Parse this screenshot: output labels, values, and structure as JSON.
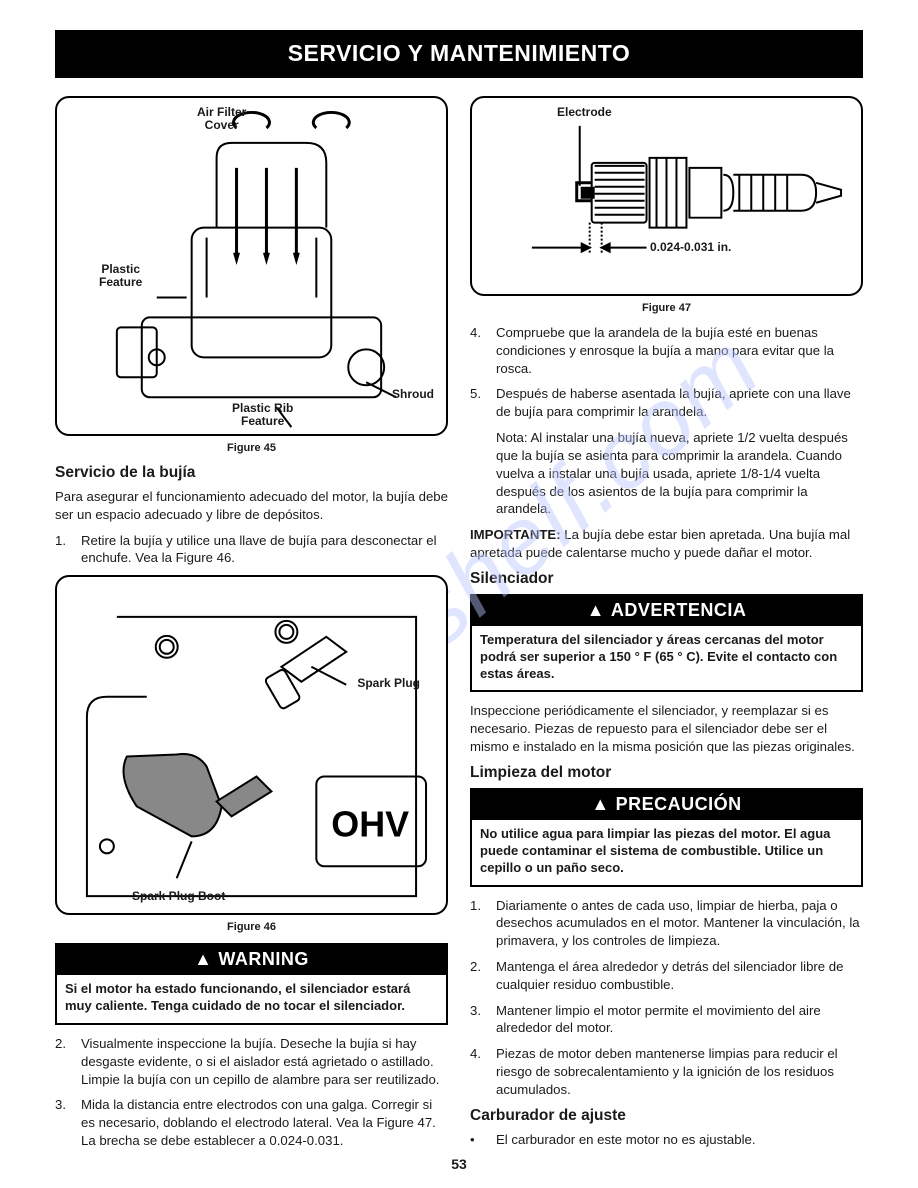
{
  "banner": "SERVICIO Y MANTENIMIENTO",
  "watermark": "manualshelf.com",
  "left": {
    "fig45": {
      "callouts": {
        "air_filter": "Air Filter\nCover",
        "plastic_feature": "Plastic\nFeature",
        "shroud": "Shroud",
        "plastic_rib": "Plastic Rib\nFeature"
      },
      "caption": "Figure 45"
    },
    "section1_h": "Servicio de la bujía",
    "section1_p": "Para asegurar el funcionamiento adecuado del motor, la bujía debe ser un espacio adecuado y libre de depósitos.",
    "list1": [
      "Retire la bujía y utilice una llave de bujía para desconectar el enchufe. Vea la Figure 46."
    ],
    "fig46": {
      "callouts": {
        "spark_plug": "Spark Plug",
        "spark_plug_boot": "Spark Plug Boot",
        "ohv": "OHV"
      },
      "caption": "Figure 46"
    },
    "warning": {
      "head": "WARNING",
      "body": "Si el motor ha estado funcionando, el silenciador estará muy caliente. Tenga cuidado de no tocar el silenciador."
    },
    "list2": [
      "Visualmente inspeccione la bujía. Deseche la bujía si hay desgaste evidente, o si el aislador está agrietado o astillado. Limpie la bujía con un cepillo de alambre para ser reutilizado.",
      "Mida la distancia entre electrodos con una galga. Corregir si es necesario, doblando el electrodo lateral. Vea la Figure 47. La brecha se debe establecer a 0.024-0.031."
    ]
  },
  "right": {
    "fig47": {
      "callouts": {
        "electrode": "Electrode",
        "gap": "0.024-0.031 in."
      },
      "caption": "Figure 47"
    },
    "list3": [
      "Compruebe que la arandela de la bujía esté en buenas condiciones y enrosque la bujía a mano para evitar que la rosca.",
      "Después de haberse asentada la bujía, apriete con una llave de bujía para comprimir la arandela."
    ],
    "note": "Nota: Al instalar una bujía nueva, apriete 1/2 vuelta después que la bujía se asienta para comprimir la arandela. Cuando vuelva a instalar una bujía usada, apriete 1/8-1/4 vuelta después de los asientos de la bujía para comprimir la arandela.",
    "importante_label": "IMPORTANTE:",
    "importante_text": " La bujía debe estar bien apretada. Una bujía mal apretada puede calentarse mucho y puede dañar el motor.",
    "silenciador_h": "Silenciador",
    "advertencia": {
      "head": "ADVERTENCIA",
      "body": "Temperatura del silenciador y áreas cercanas del motor podrá ser superior a 150 ° F (65 ° C). Evite el contacto con estas áreas."
    },
    "silenciador_p": "Inspeccione periódicamente el silenciador, y reemplazar si es necesario. Piezas de repuesto para el silenciador debe ser el mismo e instalado en la misma posición que las piezas originales.",
    "limpieza_h": "Limpieza del motor",
    "precaucion": {
      "head": "PRECAUCIÓN",
      "body": "No utilice agua para limpiar las piezas del motor. El agua puede contaminar el sistema de combustible. Utilice un cepillo o un paño seco."
    },
    "list4": [
      "Diariamente o antes de cada uso, limpiar de hierba, paja o desechos acumulados en el motor. Mantener la vinculación, la primavera, y los controles de limpieza.",
      "Mantenga el área alrededor y detrás del silenciador libre de cualquier residuo combustible.",
      "Mantener limpio el motor permite el movimiento del aire alrededor del motor.",
      "Piezas de motor deben mantenerse limpias para reducir el riesgo de sobrecalentamiento y la ignición de los residuos acumulados."
    ],
    "carburador_h": "Carburador de ajuste",
    "carburador_li": "El carburador en este motor no es ajustable."
  },
  "page_num": "53"
}
